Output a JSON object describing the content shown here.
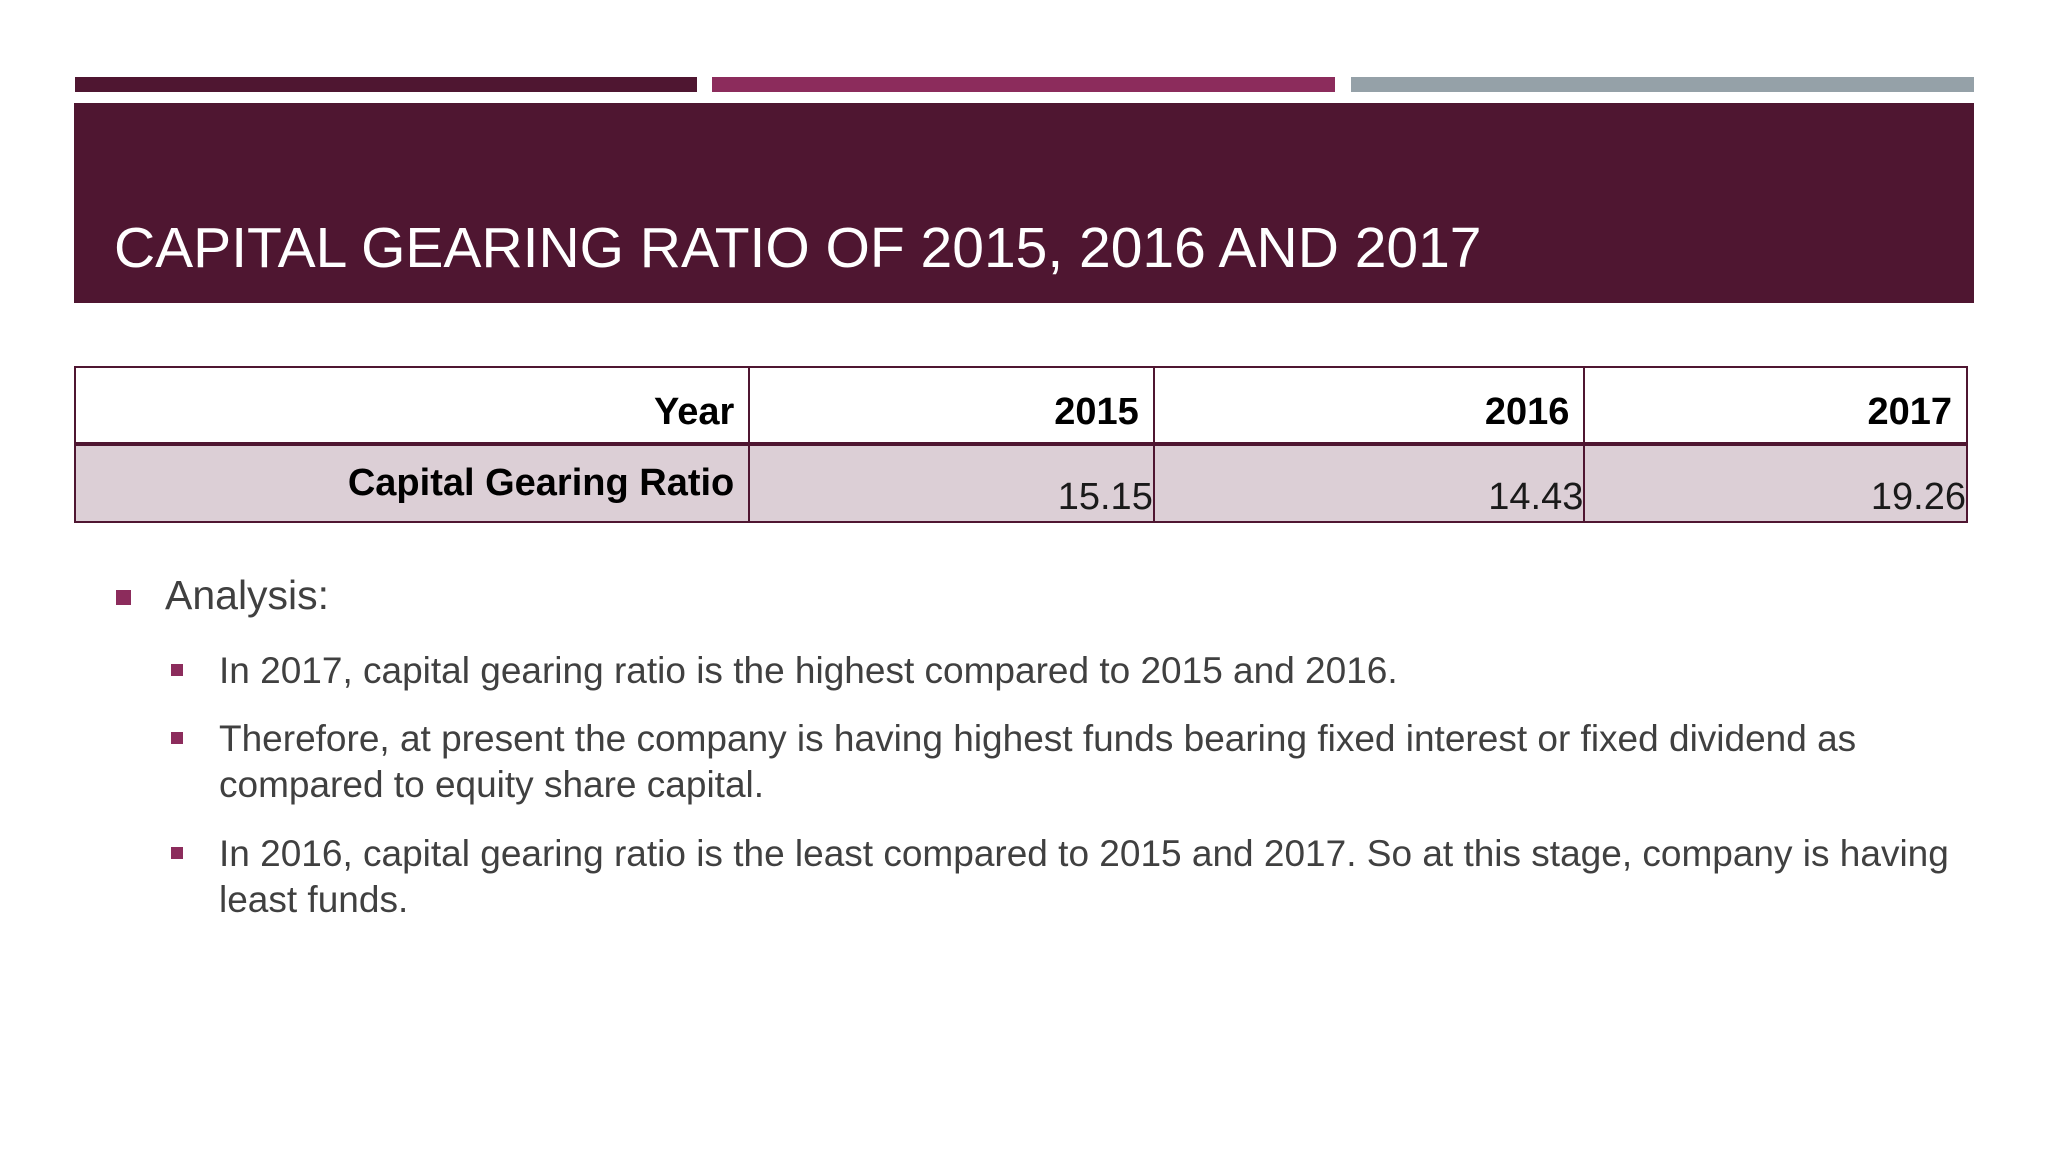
{
  "colors": {
    "brand_dark": "#4f1631",
    "brand_accent": "#8c2c5c",
    "gray_accent": "#95a1a8",
    "table_fill": "#dccfd6",
    "text_body": "#404040"
  },
  "header": {
    "title": "CAPITAL GEARING RATIO OF 2015, 2016 AND 2017"
  },
  "table": {
    "header_label": "Year",
    "years": [
      "2015",
      "2016",
      "2017"
    ],
    "row_label": "Capital Gearing Ratio",
    "values": [
      "15.15",
      "14.43",
      "19.26"
    ]
  },
  "analysis": {
    "heading": "Analysis:",
    "points": [
      "In 2017, capital gearing ratio is the highest compared to 2015 and 2016.",
      "Therefore, at present the company is having highest funds bearing fixed interest or fixed dividend as compared to equity share capital.",
      "In 2016,  capital gearing ratio is the least compared to 2015 and 2017.  So at this stage, company is having least funds."
    ]
  }
}
